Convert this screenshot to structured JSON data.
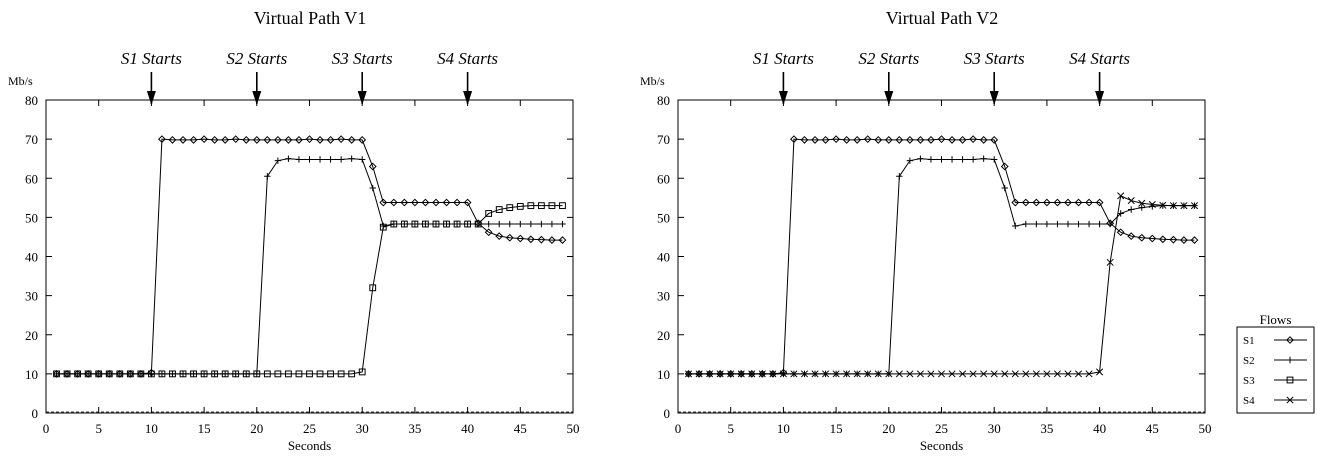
{
  "chart_data": [
    {
      "type": "line",
      "title": "Virtual Path V1",
      "xlabel": "Seconds",
      "ylabel": "Mb/s",
      "xlim": [
        0,
        50
      ],
      "ylim": [
        0,
        80
      ],
      "xticks": [
        0,
        5,
        10,
        15,
        20,
        25,
        30,
        35,
        40,
        45,
        50
      ],
      "yticks": [
        0,
        10,
        20,
        30,
        40,
        50,
        60,
        70,
        80
      ],
      "grid": false,
      "annotations": [
        {
          "x": 10,
          "text": "S1 Starts"
        },
        {
          "x": 20,
          "text": "S2 Starts"
        },
        {
          "x": 30,
          "text": "S3 Starts"
        },
        {
          "x": 40,
          "text": "S4 Starts"
        }
      ],
      "series": [
        {
          "name": "S1",
          "marker": "diamond",
          "x": [
            1,
            2,
            3,
            4,
            5,
            6,
            7,
            8,
            9,
            10,
            11,
            12,
            13,
            14,
            15,
            16,
            17,
            18,
            19,
            20,
            21,
            22,
            23,
            24,
            25,
            26,
            27,
            28,
            29,
            30,
            31,
            32,
            33,
            34,
            35,
            36,
            37,
            38,
            39,
            40,
            41,
            42,
            43,
            44,
            45,
            46,
            47,
            48,
            49
          ],
          "y": [
            10,
            10,
            10,
            10,
            10,
            10,
            10,
            10,
            10,
            10.3,
            70,
            69.8,
            69.8,
            69.8,
            70,
            69.8,
            69.8,
            70,
            69.8,
            69.8,
            69.8,
            69.8,
            69.8,
            69.8,
            70,
            69.8,
            69.8,
            70,
            69.8,
            69.8,
            63,
            53.8,
            53.8,
            53.8,
            53.8,
            53.8,
            53.8,
            53.8,
            53.8,
            53.8,
            48.5,
            46.2,
            45.2,
            44.8,
            44.6,
            44.4,
            44.3,
            44.2,
            44.2
          ]
        },
        {
          "name": "S2",
          "marker": "plus",
          "x": [
            1,
            2,
            3,
            4,
            5,
            6,
            7,
            8,
            9,
            10,
            11,
            12,
            13,
            14,
            15,
            16,
            17,
            18,
            19,
            20,
            21,
            22,
            23,
            24,
            25,
            26,
            27,
            28,
            29,
            30,
            31,
            32,
            33,
            34,
            35,
            36,
            37,
            38,
            39,
            40,
            41,
            42,
            43,
            44,
            45,
            46,
            47,
            48,
            49
          ],
          "y": [
            10,
            10,
            10,
            10,
            10,
            10,
            10,
            10,
            10,
            10,
            10,
            10,
            10,
            10,
            10,
            10,
            10,
            10,
            10,
            10,
            60.5,
            64.5,
            65,
            64.8,
            64.8,
            64.8,
            64.8,
            64.8,
            65,
            64.8,
            57.5,
            47.8,
            48.3,
            48.3,
            48.3,
            48.3,
            48.3,
            48.3,
            48.3,
            48.3,
            48.3,
            48.3,
            48.3,
            48.3,
            48.3,
            48.3,
            48.3,
            48.3,
            48.3
          ]
        },
        {
          "name": "S3",
          "marker": "square",
          "x": [
            1,
            2,
            3,
            4,
            5,
            6,
            7,
            8,
            9,
            10,
            11,
            12,
            13,
            14,
            15,
            16,
            17,
            18,
            19,
            20,
            21,
            22,
            23,
            24,
            25,
            26,
            27,
            28,
            29,
            30,
            31,
            32,
            33,
            34,
            35,
            36,
            37,
            38,
            39,
            40,
            41,
            42,
            43,
            44,
            45,
            46,
            47,
            48,
            49
          ],
          "y": [
            10,
            10,
            10,
            10,
            10,
            10,
            10,
            10,
            10,
            10,
            10,
            10,
            10,
            10,
            10,
            10,
            10,
            10,
            10,
            10,
            10,
            10,
            10,
            10,
            10,
            10,
            10,
            10,
            10,
            10.5,
            32,
            47.5,
            48.3,
            48.3,
            48.3,
            48.3,
            48.3,
            48.3,
            48.3,
            48.3,
            48.3,
            51,
            52,
            52.5,
            52.8,
            53,
            53,
            53,
            53
          ]
        }
      ]
    },
    {
      "type": "line",
      "title": "Virtual Path V2",
      "xlabel": "Seconds",
      "ylabel": "Mb/s",
      "xlim": [
        0,
        50
      ],
      "ylim": [
        0,
        80
      ],
      "xticks": [
        0,
        5,
        10,
        15,
        20,
        25,
        30,
        35,
        40,
        45,
        50
      ],
      "yticks": [
        0,
        10,
        20,
        30,
        40,
        50,
        60,
        70,
        80
      ],
      "grid": false,
      "annotations": [
        {
          "x": 10,
          "text": "S1 Starts"
        },
        {
          "x": 20,
          "text": "S2 Starts"
        },
        {
          "x": 30,
          "text": "S3 Starts"
        },
        {
          "x": 40,
          "text": "S4 Starts"
        }
      ],
      "series": [
        {
          "name": "S1",
          "marker": "diamond",
          "x": [
            1,
            2,
            3,
            4,
            5,
            6,
            7,
            8,
            9,
            10,
            11,
            12,
            13,
            14,
            15,
            16,
            17,
            18,
            19,
            20,
            21,
            22,
            23,
            24,
            25,
            26,
            27,
            28,
            29,
            30,
            31,
            32,
            33,
            34,
            35,
            36,
            37,
            38,
            39,
            40,
            41,
            42,
            43,
            44,
            45,
            46,
            47,
            48,
            49
          ],
          "y": [
            10,
            10,
            10,
            10,
            10,
            10,
            10,
            10,
            10,
            10.3,
            70,
            69.8,
            69.8,
            69.8,
            70,
            69.8,
            69.8,
            70,
            69.8,
            69.8,
            69.8,
            69.8,
            69.8,
            69.8,
            70,
            69.8,
            69.8,
            70,
            69.8,
            69.8,
            63,
            53.8,
            53.8,
            53.8,
            53.8,
            53.8,
            53.8,
            53.8,
            53.8,
            53.8,
            48.5,
            46.2,
            45.2,
            44.8,
            44.6,
            44.4,
            44.3,
            44.2,
            44.2
          ]
        },
        {
          "name": "S2",
          "marker": "plus",
          "x": [
            1,
            2,
            3,
            4,
            5,
            6,
            7,
            8,
            9,
            10,
            11,
            12,
            13,
            14,
            15,
            16,
            17,
            18,
            19,
            20,
            21,
            22,
            23,
            24,
            25,
            26,
            27,
            28,
            29,
            30,
            31,
            32,
            33,
            34,
            35,
            36,
            37,
            38,
            39,
            40,
            41,
            42,
            43,
            44,
            45,
            46,
            47,
            48,
            49
          ],
          "y": [
            10,
            10,
            10,
            10,
            10,
            10,
            10,
            10,
            10,
            10,
            10,
            10,
            10,
            10,
            10,
            10,
            10,
            10,
            10,
            10,
            60.5,
            64.5,
            65,
            64.8,
            64.8,
            64.8,
            64.8,
            64.8,
            65,
            64.8,
            57.5,
            47.8,
            48.3,
            48.3,
            48.3,
            48.3,
            48.3,
            48.3,
            48.3,
            48.3,
            48.3,
            51,
            52,
            52.5,
            52.8,
            53,
            53,
            53,
            53
          ]
        },
        {
          "name": "S4",
          "marker": "cross",
          "x": [
            1,
            2,
            3,
            4,
            5,
            6,
            7,
            8,
            9,
            10,
            11,
            12,
            13,
            14,
            15,
            16,
            17,
            18,
            19,
            20,
            21,
            22,
            23,
            24,
            25,
            26,
            27,
            28,
            29,
            30,
            31,
            32,
            33,
            34,
            35,
            36,
            37,
            38,
            39,
            40,
            41,
            42,
            43,
            44,
            45,
            46,
            47,
            48,
            49
          ],
          "y": [
            10,
            10,
            10,
            10,
            10,
            10,
            10,
            10,
            10,
            10,
            10,
            10,
            10,
            10,
            10,
            10,
            10,
            10,
            10,
            10,
            10,
            10,
            10,
            10,
            10,
            10,
            10,
            10,
            10,
            10,
            10,
            10,
            10,
            10,
            10,
            10,
            10,
            10,
            10,
            10.5,
            38.5,
            55.5,
            54.3,
            53.6,
            53.3,
            53.1,
            53,
            53,
            53
          ]
        }
      ]
    }
  ],
  "legend": {
    "title": "Flows",
    "placement": "bottom-right",
    "entries": [
      {
        "name": "S1",
        "marker": "diamond"
      },
      {
        "name": "S2",
        "marker": "plus"
      },
      {
        "name": "S3",
        "marker": "square"
      },
      {
        "name": "S4",
        "marker": "cross"
      }
    ]
  }
}
